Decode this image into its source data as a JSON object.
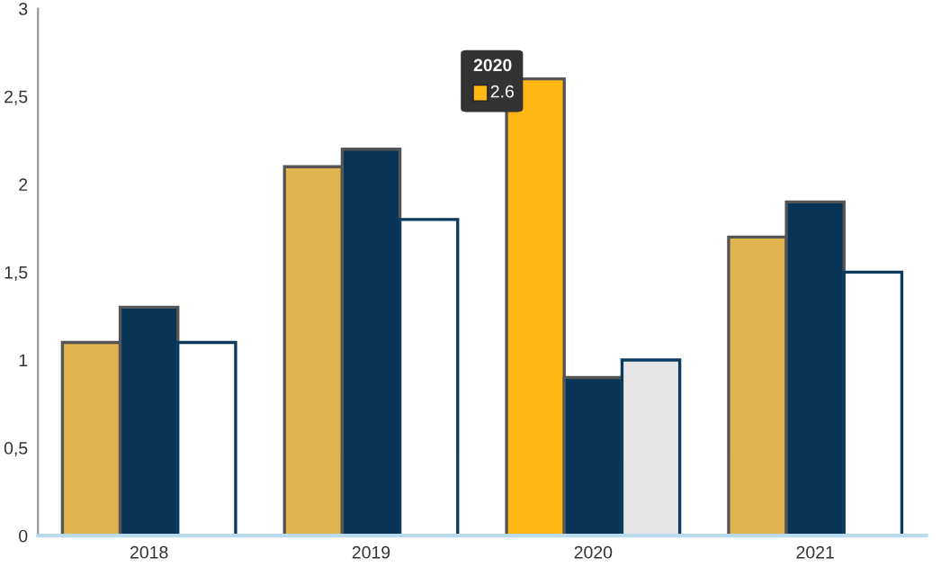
{
  "chart_data": {
    "type": "bar",
    "categories": [
      "2018",
      "2019",
      "2020",
      "2021"
    ],
    "series": [
      {
        "colors": [
          "#e0b44f",
          "#e0b44f",
          "#fdb614",
          "#e0b44f"
        ],
        "values": [
          1.1,
          2.1,
          2.6,
          1.7
        ]
      },
      {
        "color": "#083557",
        "values": [
          1.3,
          2.2,
          0.9,
          1.9
        ]
      },
      {
        "colors": [
          "#ffffff",
          "#ffffff",
          "#e5e5e5",
          "#ffffff"
        ],
        "values": [
          1.1,
          1.8,
          1.0,
          1.5
        ]
      }
    ],
    "ylim": [
      0,
      3
    ],
    "yticks": [
      {
        "value": 0,
        "label": "0"
      },
      {
        "value": 0.5,
        "label": "0,5"
      },
      {
        "value": 1,
        "label": "1"
      },
      {
        "value": 1.5,
        "label": "1,5"
      },
      {
        "value": 2,
        "label": "2"
      },
      {
        "value": 2.5,
        "label": "2,5"
      },
      {
        "value": 3,
        "label": "3"
      }
    ],
    "annotations": [
      "2020",
      "2.6"
    ],
    "grid": false,
    "legend": false
  }
}
